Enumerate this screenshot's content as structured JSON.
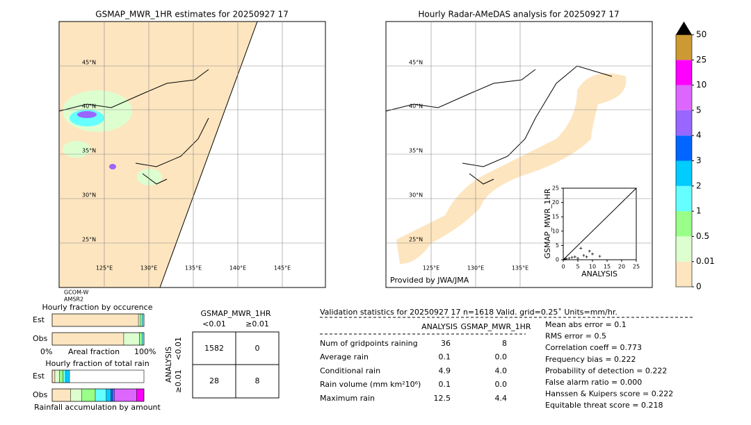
{
  "left_map": {
    "title": "GSMAP_MWR_1HR estimates for 20250927 17",
    "lat_labels": [
      "45°N",
      "40°N",
      "35°N",
      "30°N",
      "25°N"
    ],
    "lon_labels": [
      "125°E",
      "130°E",
      "135°E",
      "140°E",
      "145°E"
    ],
    "satellite": [
      "GCOM-W",
      "AMSR2"
    ]
  },
  "right_map": {
    "title": "Hourly Radar-AMeDAS analysis for 20250927 17",
    "lat_labels": [
      "45°N",
      "40°N",
      "35°N",
      "30°N",
      "25°N"
    ],
    "lon_labels": [
      "125°E",
      "130°E",
      "135°E"
    ],
    "credit": "Provided by JWA/JMA"
  },
  "scatter": {
    "xlabel": "ANALYSIS",
    "ylabel": "GSMAP_MWR_1HR",
    "xlim": [
      0,
      25
    ],
    "ylim": [
      0,
      25
    ],
    "xticks": [
      0,
      5,
      10,
      15,
      20,
      25
    ],
    "yticks": [
      0,
      5,
      10,
      15,
      20,
      25
    ],
    "x": [
      0.5,
      1,
      2,
      3,
      4,
      5,
      6,
      7,
      8,
      9,
      10,
      12.5
    ],
    "y": [
      0.2,
      0.3,
      0.5,
      0.8,
      1,
      0.5,
      4,
      1.5,
      1,
      3,
      2,
      1.2
    ]
  },
  "colorbar": {
    "levels": [
      0,
      0.01,
      0.5,
      1,
      2,
      3,
      4,
      5,
      10,
      25,
      50
    ],
    "colors": [
      "#fde5bf",
      "#ddffd0",
      "#99ff88",
      "#66ffff",
      "#00ccff",
      "#0066ff",
      "#9966ff",
      "#dd66ff",
      "#ff00ff",
      "#cc9933"
    ],
    "over_color": "#000000"
  },
  "occurrence": {
    "title": "Hourly fraction by occurence",
    "rows": [
      "Est",
      "Obs"
    ],
    "est": [
      0.94,
      0.02,
      0.02,
      0.02
    ],
    "obs": [
      0.78,
      0.17,
      0.03,
      0.02
    ],
    "axis_left": "0%",
    "axis_label": "Areal fraction",
    "axis_right": "100%"
  },
  "total_rain": {
    "title": "Hourly fraction of total rain",
    "rows": [
      "Est",
      "Obs"
    ],
    "est": [
      0.03,
      0.05,
      0.04,
      0.03,
      0.04
    ],
    "obs": [
      0.2,
      0.12,
      0.15,
      0.12,
      0.05,
      0.02,
      0.02,
      0.24,
      0.08
    ],
    "footer": "Rainfall accumulation by amount"
  },
  "contingency": {
    "title": "GSMAP_MWR_1HR",
    "columns": [
      "<0.01",
      "≥0.01"
    ],
    "row_title": "ANALYSIS",
    "rows": [
      "<0.01",
      "≥0.01"
    ],
    "cells": [
      [
        1582,
        0
      ],
      [
        28,
        8
      ]
    ]
  },
  "validation": {
    "header": "Validation statistics for 20250927 17  n=1618 Valid. grid=0.25˚ Units=mm/hr.",
    "columns": [
      "ANALYSIS",
      "GSMAP_MWR_1HR"
    ],
    "rows": [
      [
        "Num of gridpoints raining",
        "36",
        "8"
      ],
      [
        "Average rain",
        "0.1",
        "0.0"
      ],
      [
        "Conditional rain",
        "4.9",
        "4.0"
      ],
      [
        "Rain volume (mm km²10⁶)",
        "0.1",
        "0.0"
      ],
      [
        "Maximum rain",
        "12.5",
        "4.4"
      ]
    ]
  },
  "scores": [
    "Mean abs error =    0.1",
    "RMS error =    0.5",
    "Correlation coeff =  0.773",
    "Frequency bias =  0.222",
    "Probability of detection =  0.222",
    "False alarm ratio =  0.000",
    "Hanssen & Kuipers score =  0.222",
    "Equitable threat score =  0.218"
  ]
}
